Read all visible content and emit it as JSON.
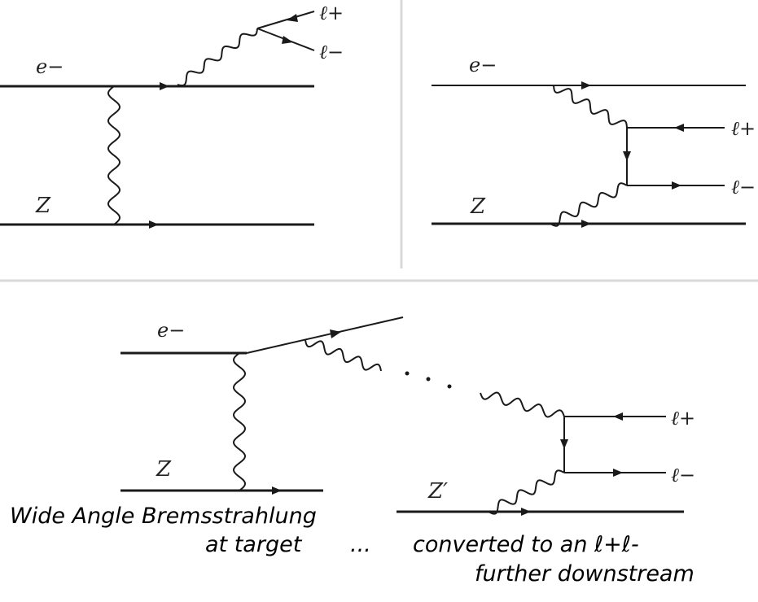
{
  "diagrams": {
    "top_left": {
      "electron_label": "e−",
      "nucleus_label": "Z",
      "lepton_plus_label": "ℓ+",
      "lepton_minus_label": "ℓ−"
    },
    "top_right": {
      "electron_label": "e−",
      "nucleus_label": "Z",
      "lepton_plus_label": "ℓ+",
      "lepton_minus_label": "ℓ−"
    },
    "bottom": {
      "electron_label": "e−",
      "nucleus_label": "Z",
      "nucleus2_label": "Z′",
      "lepton_plus_label": "ℓ+",
      "lepton_minus_label": "ℓ−"
    }
  },
  "captions": {
    "line1": "Wide Angle Bremsstrahlung",
    "line2": "at target",
    "ellipsis": "...",
    "line3": "converted to an ℓ+ℓ-",
    "line4": "further downstream"
  }
}
